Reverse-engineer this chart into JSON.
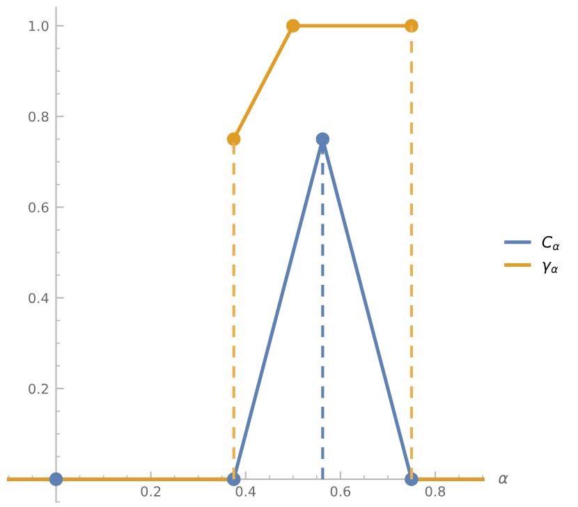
{
  "chart_data": {
    "type": "line",
    "xlabel": "α",
    "xlim": [
      -0.1,
      0.9
    ],
    "ylim": [
      -0.05,
      1.04
    ],
    "xticks": [
      0.2,
      0.4,
      0.6,
      0.8
    ],
    "yticks": [
      0.2,
      0.4,
      0.6,
      0.8,
      {
        "value": 1,
        "label": "1.0"
      }
    ],
    "grid": false,
    "legend": "right",
    "series": [
      {
        "name": "C$_{α}$",
        "color": "#5e81b5",
        "x": [
          -0.1,
          0.375,
          0.5625,
          0.75,
          0.9
        ],
        "values": [
          0,
          0,
          0.75,
          0,
          0
        ]
      },
      {
        "name": "γ$_{α}$",
        "color": "#e19c24",
        "x": [
          -0.1,
          0,
          0.375,
          null,
          0.375,
          0.5,
          0.75,
          null,
          0.75,
          0.9
        ],
        "values": [
          0,
          0,
          0,
          null,
          0.75,
          1.0,
          1.0,
          null,
          0,
          0
        ]
      },
      {
        "color": "#5e81b5",
        "line_style": "dashed",
        "x": [
          0.5625,
          0.5625
        ],
        "values": [
          0,
          0.75
        ]
      },
      {
        "color": "#eab04f",
        "line_style": "dashed",
        "x": [
          0.375,
          0.375,
          null,
          0.75,
          0.75
        ],
        "values": [
          0,
          0.75,
          null,
          0,
          1.0
        ]
      },
      {
        "type": "scatter",
        "marker": "circle",
        "color": "#e19c24",
        "x": [
          0.375,
          0.5,
          0.75
        ],
        "values": [
          0.75,
          1.0,
          1.0
        ]
      },
      {
        "type": "scatter",
        "marker": "circle",
        "color": "#e19c24",
        "x": [
          0,
          0.375,
          0.75
        ],
        "values": [
          0,
          0,
          0
        ]
      },
      {
        "type": "scatter",
        "marker": "circle",
        "color": "#5e81b5",
        "x": [
          0.375,
          0.5625,
          0.75
        ],
        "values": [
          0,
          0.75,
          0
        ]
      },
      {
        "type": "scatter",
        "marker": "circle",
        "color": "#5e81b5",
        "x": [
          0
        ],
        "values": [
          0
        ]
      }
    ]
  }
}
